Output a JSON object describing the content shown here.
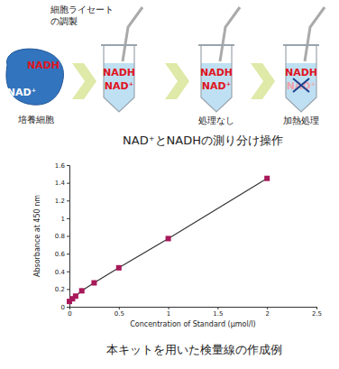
{
  "diagram": {
    "prep_label": [
      "細胞ライセート",
      "の調製"
    ],
    "cell": {
      "label": "培養細胞",
      "molecules": [
        "NADH",
        "NAD⁺"
      ]
    },
    "tubes": [
      {
        "molecules": [
          "NADH",
          "NAD⁺"
        ]
      },
      {
        "label": "処理なし",
        "molecules": [
          "NADH",
          "NAD⁺"
        ]
      },
      {
        "label": "加熱処理",
        "molecules": [
          "NADH",
          "NAD⁺"
        ],
        "crossed": "NAD⁺"
      }
    ],
    "caption": "NAD⁺とNADHの測り分け操作"
  },
  "chart_data": {
    "type": "line",
    "title": "本キットを用いた検量線の作成例",
    "x_label": "Concentration of Standard (μmol/l)",
    "y_label": "Absorbance at 450 nm",
    "x": [
      0,
      0.03125,
      0.0625,
      0.125,
      0.25,
      0.5,
      1,
      2
    ],
    "values": [
      0.06,
      0.09,
      0.12,
      0.18,
      0.27,
      0.44,
      0.77,
      1.45
    ],
    "color": "#a8195a",
    "marker": "square",
    "line_style": "solid",
    "grid": false,
    "xlim": [
      0,
      2.5
    ],
    "xticks": [
      0,
      0.5,
      1,
      1.5,
      2,
      2.5
    ],
    "ylim": [
      0,
      1.6
    ],
    "yticks": [
      0,
      0.2,
      0.4,
      0.6,
      0.8,
      1,
      1.2,
      1.4,
      1.6
    ]
  }
}
